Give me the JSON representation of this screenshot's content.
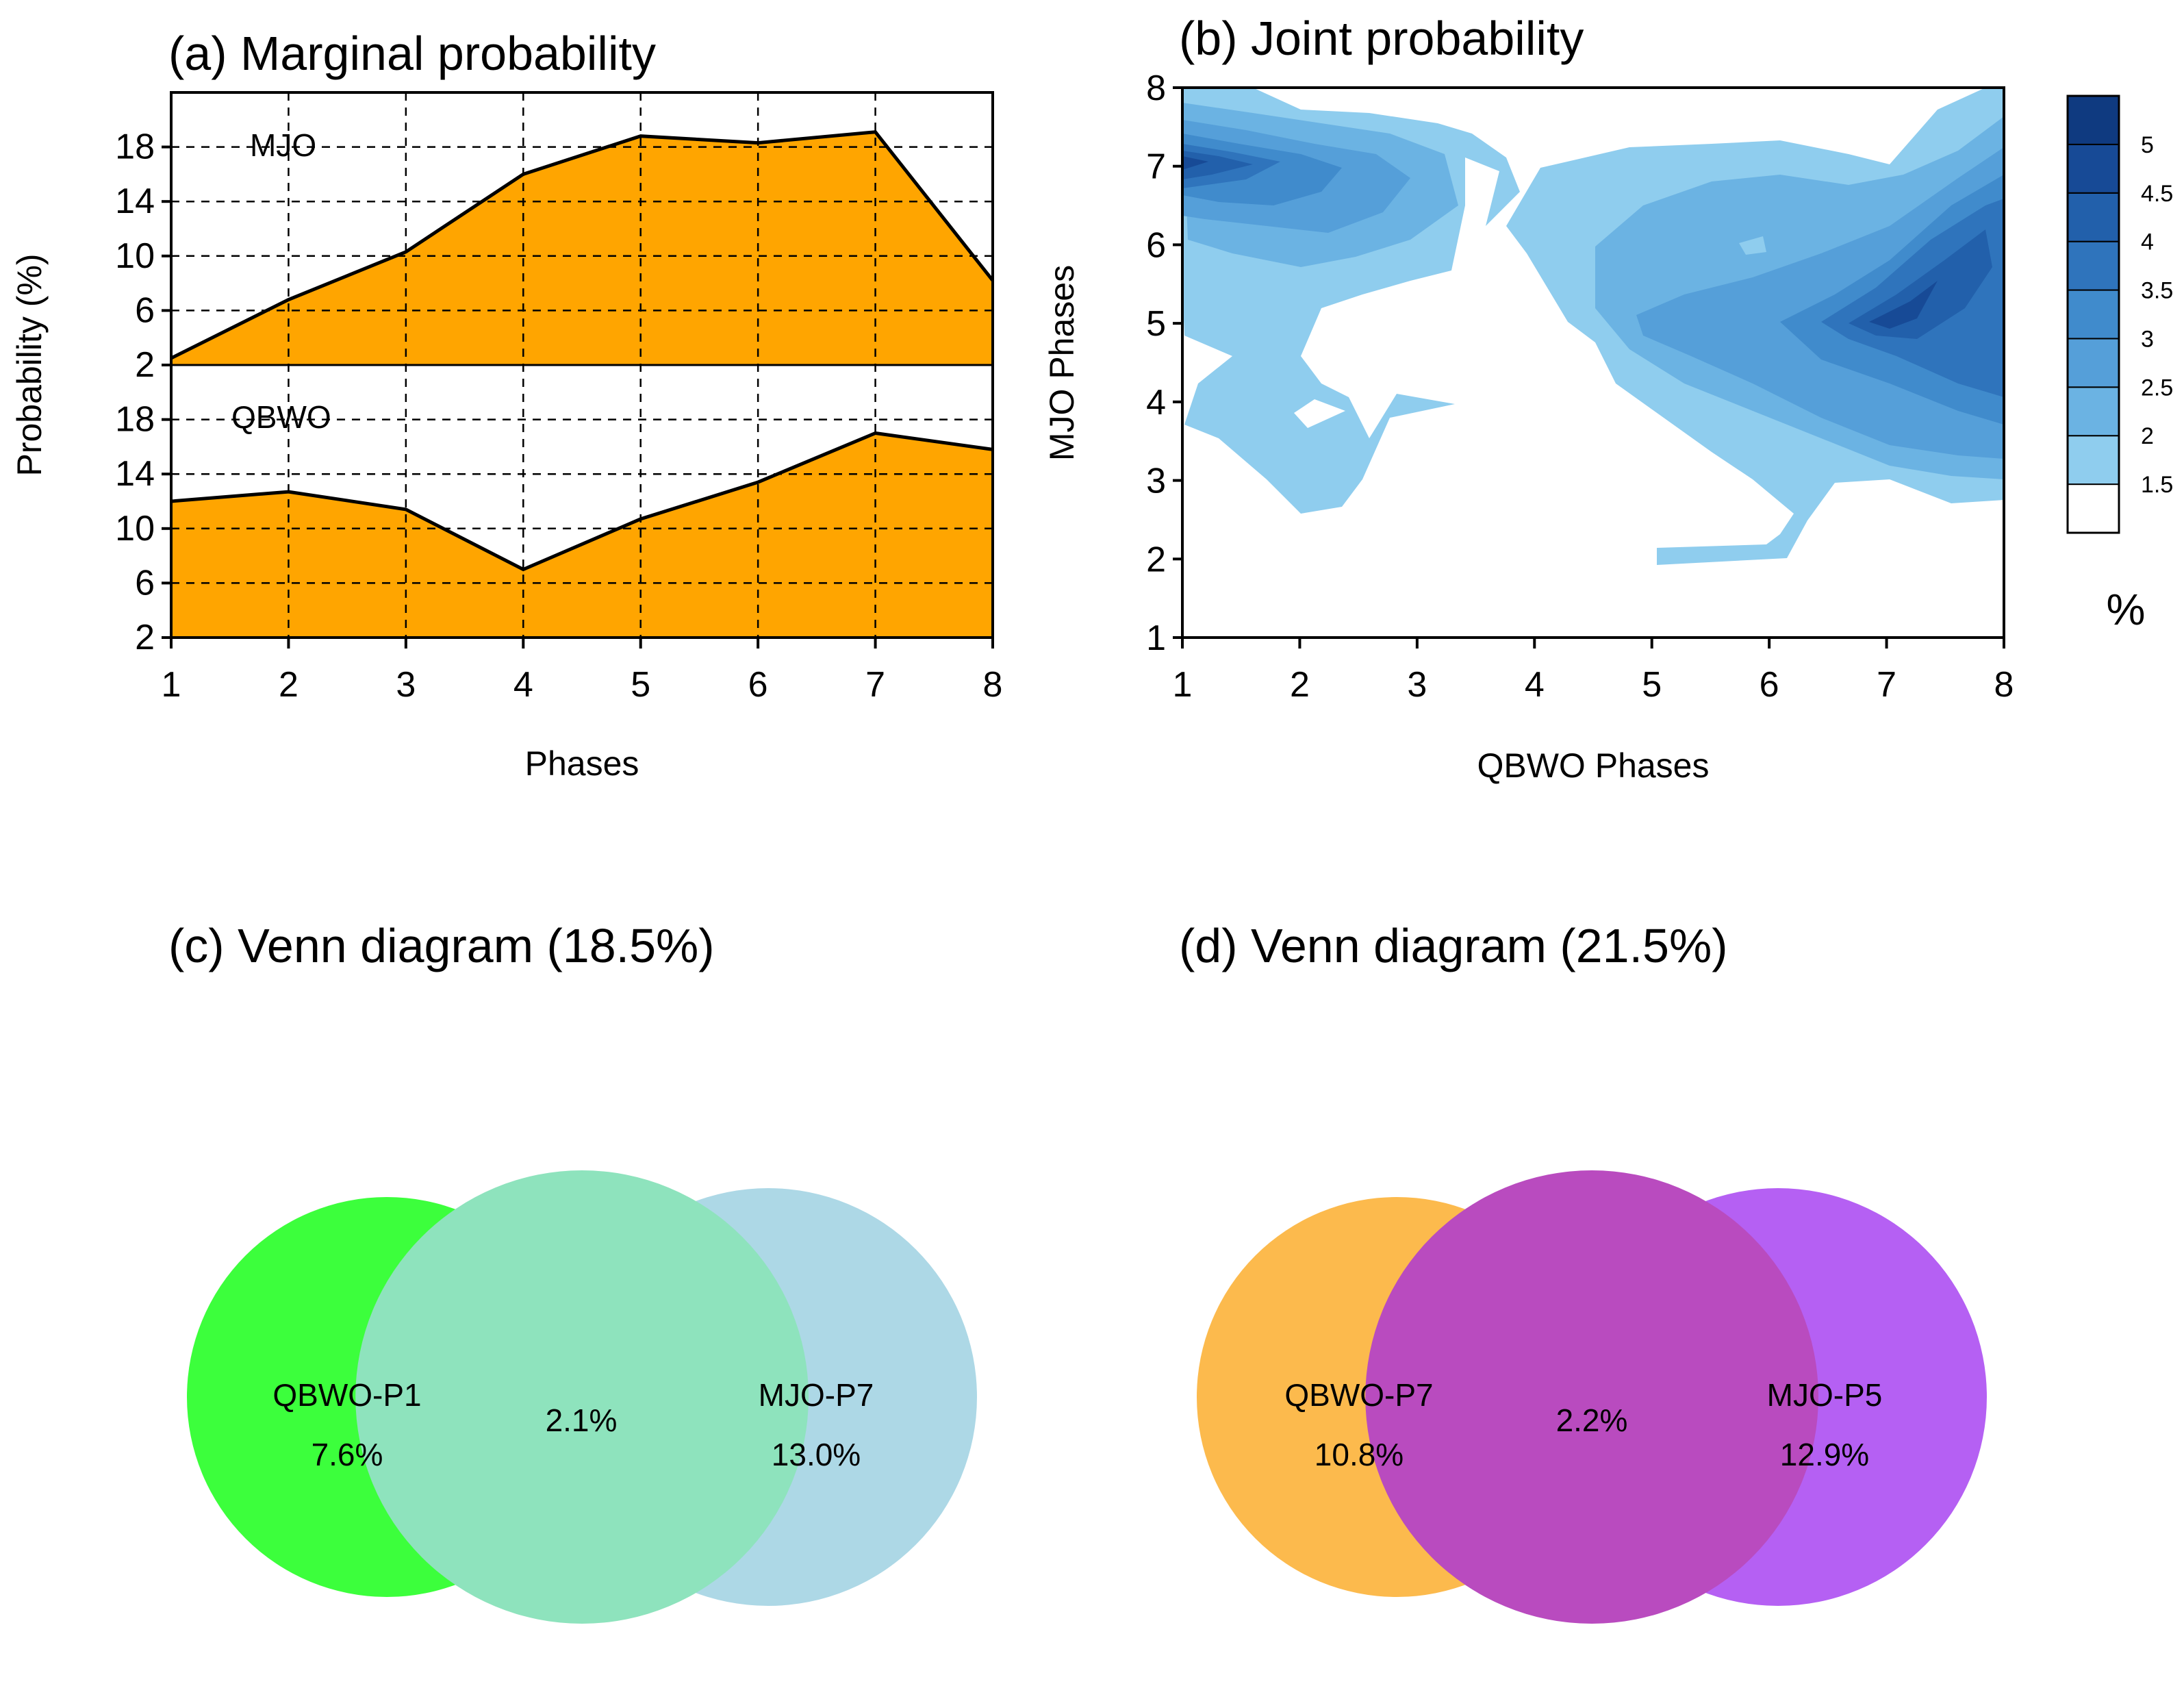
{
  "chart_data": [
    {
      "panel": "a",
      "type": "area",
      "title": "(a) Marginal probability",
      "xlabel": "Phases",
      "ylabel": "Probability (%)",
      "categories": [
        "1",
        "2",
        "3",
        "4",
        "5",
        "6",
        "7",
        "8"
      ],
      "x": [
        1,
        2,
        3,
        4,
        5,
        6,
        7,
        8
      ],
      "ylim": [
        2,
        22
      ],
      "yticks": [
        "2",
        "6",
        "10",
        "14",
        "18"
      ],
      "grid": true,
      "fill_color": "#FFA500",
      "series": [
        {
          "name": "MJO",
          "values": [
            2.5,
            6.8,
            10.3,
            16.0,
            18.8,
            18.3,
            19.1,
            8.2
          ]
        },
        {
          "name": "QBWO",
          "values": [
            12.0,
            12.7,
            11.4,
            7.0,
            10.7,
            13.4,
            17.0,
            15.8
          ]
        }
      ]
    },
    {
      "panel": "b",
      "type": "heatmap",
      "title": "(b) Joint probability",
      "xlabel": "QBWO Phases",
      "ylabel": "MJO Phases",
      "xlim": [
        1,
        8
      ],
      "ylim": [
        1,
        8
      ],
      "xticks": [
        "1",
        "2",
        "3",
        "4",
        "5",
        "6",
        "7",
        "8"
      ],
      "yticks": [
        "1",
        "2",
        "3",
        "4",
        "5",
        "6",
        "7",
        "8"
      ],
      "colorbar": {
        "labels": [
          "1.5",
          "2",
          "2.5",
          "3",
          "3.5",
          "4",
          "4.5",
          "5"
        ],
        "unit": "%",
        "colors": [
          "#ffffff",
          "#8fcdee",
          "#6bb3e3",
          "#559fd9",
          "#408bcc",
          "#2f74bc",
          "#2260ab",
          "#174a96",
          "#0f3a80"
        ]
      }
    },
    {
      "panel": "c",
      "type": "venn",
      "title": "(c) Venn diagram (18.5%)",
      "sets": [
        {
          "name": "QBWO-P1",
          "value": "7.6%",
          "color": "#3cff3c"
        },
        {
          "name": "MJO-P7",
          "value": "13.0%",
          "color": "#add8e6"
        }
      ],
      "intersection": "2.1%"
    },
    {
      "panel": "d",
      "type": "venn",
      "title": "(d) Venn diagram (21.5%)",
      "sets": [
        {
          "name": "QBWO-P7",
          "value": "10.8%",
          "color": "#ffa500"
        },
        {
          "name": "MJO-P5",
          "value": "12.9%",
          "color": "#a020f0"
        }
      ],
      "intersection": "2.2%"
    }
  ]
}
